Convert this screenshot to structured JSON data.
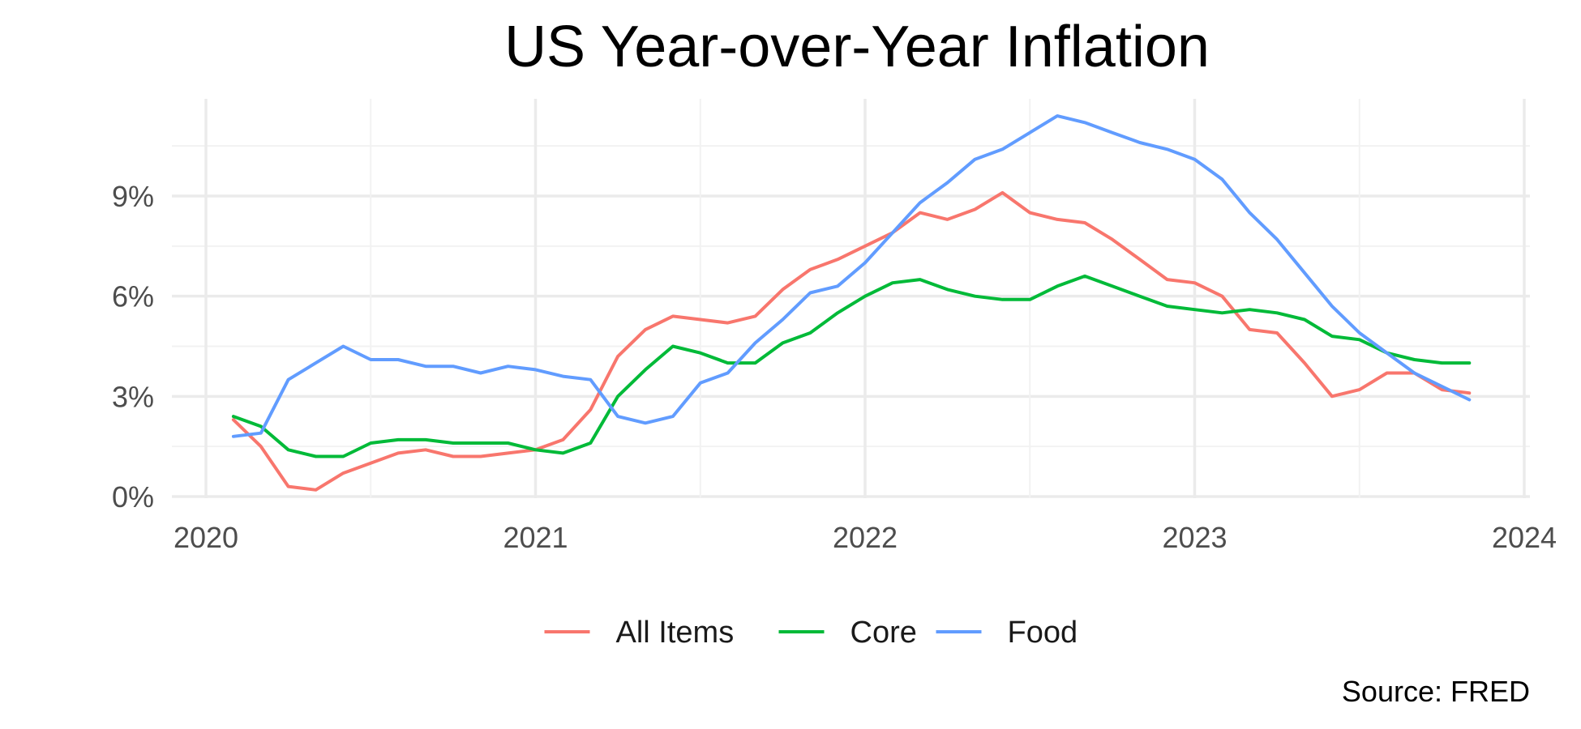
{
  "chart_data": {
    "type": "line",
    "title": "US Year-over-Year Inflation",
    "xlabel": "",
    "ylabel": "",
    "caption": "Source: FRED",
    "x_ticks": [
      "2020",
      "2021",
      "2022",
      "2023",
      "2024"
    ],
    "y_ticks": [
      "0%",
      "3%",
      "6%",
      "9%"
    ],
    "xlim": [
      "2020-01",
      "2024-01"
    ],
    "ylim": [
      0,
      11.5
    ],
    "grid": true,
    "legend": "bottom",
    "x": [
      "2020-02",
      "2020-03",
      "2020-04",
      "2020-05",
      "2020-06",
      "2020-07",
      "2020-08",
      "2020-09",
      "2020-10",
      "2020-11",
      "2020-12",
      "2021-01",
      "2021-02",
      "2021-03",
      "2021-04",
      "2021-05",
      "2021-06",
      "2021-07",
      "2021-08",
      "2021-09",
      "2021-10",
      "2021-11",
      "2021-12",
      "2022-01",
      "2022-02",
      "2022-03",
      "2022-04",
      "2022-05",
      "2022-06",
      "2022-07",
      "2022-08",
      "2022-09",
      "2022-10",
      "2022-11",
      "2022-12",
      "2023-01",
      "2023-02",
      "2023-03",
      "2023-04",
      "2023-05",
      "2023-06",
      "2023-07",
      "2023-08",
      "2023-09",
      "2023-10",
      "2023-11"
    ],
    "series": [
      {
        "name": "All Items",
        "color": "#F8766D",
        "values": [
          2.3,
          1.5,
          0.3,
          0.2,
          0.7,
          1.0,
          1.3,
          1.4,
          1.2,
          1.2,
          1.3,
          1.4,
          1.7,
          2.6,
          4.2,
          5.0,
          5.4,
          5.3,
          5.2,
          5.4,
          6.2,
          6.8,
          7.1,
          7.5,
          7.9,
          8.5,
          8.3,
          8.6,
          9.1,
          8.5,
          8.3,
          8.2,
          7.7,
          7.1,
          6.5,
          6.4,
          6.0,
          5.0,
          4.9,
          4.0,
          3.0,
          3.2,
          3.7,
          3.7,
          3.2,
          3.1
        ]
      },
      {
        "name": "Core",
        "color": "#00BA38",
        "values": [
          2.4,
          2.1,
          1.4,
          1.2,
          1.2,
          1.6,
          1.7,
          1.7,
          1.6,
          1.6,
          1.6,
          1.4,
          1.3,
          1.6,
          3.0,
          3.8,
          4.5,
          4.3,
          4.0,
          4.0,
          4.6,
          4.9,
          5.5,
          6.0,
          6.4,
          6.5,
          6.2,
          6.0,
          5.9,
          5.9,
          6.3,
          6.6,
          6.3,
          6.0,
          5.7,
          5.6,
          5.5,
          5.6,
          5.5,
          5.3,
          4.8,
          4.7,
          4.3,
          4.1,
          4.0,
          4.0
        ]
      },
      {
        "name": "Food",
        "color": "#619CFF",
        "values": [
          1.8,
          1.9,
          3.5,
          4.0,
          4.5,
          4.1,
          4.1,
          3.9,
          3.9,
          3.7,
          3.9,
          3.8,
          3.6,
          3.5,
          2.4,
          2.2,
          2.4,
          3.4,
          3.7,
          4.6,
          5.3,
          6.1,
          6.3,
          7.0,
          7.9,
          8.8,
          9.4,
          10.1,
          10.4,
          10.9,
          11.4,
          11.2,
          10.9,
          10.6,
          10.4,
          10.1,
          9.5,
          8.5,
          7.7,
          6.7,
          5.7,
          4.9,
          4.3,
          3.7,
          3.3,
          2.9
        ]
      }
    ]
  }
}
